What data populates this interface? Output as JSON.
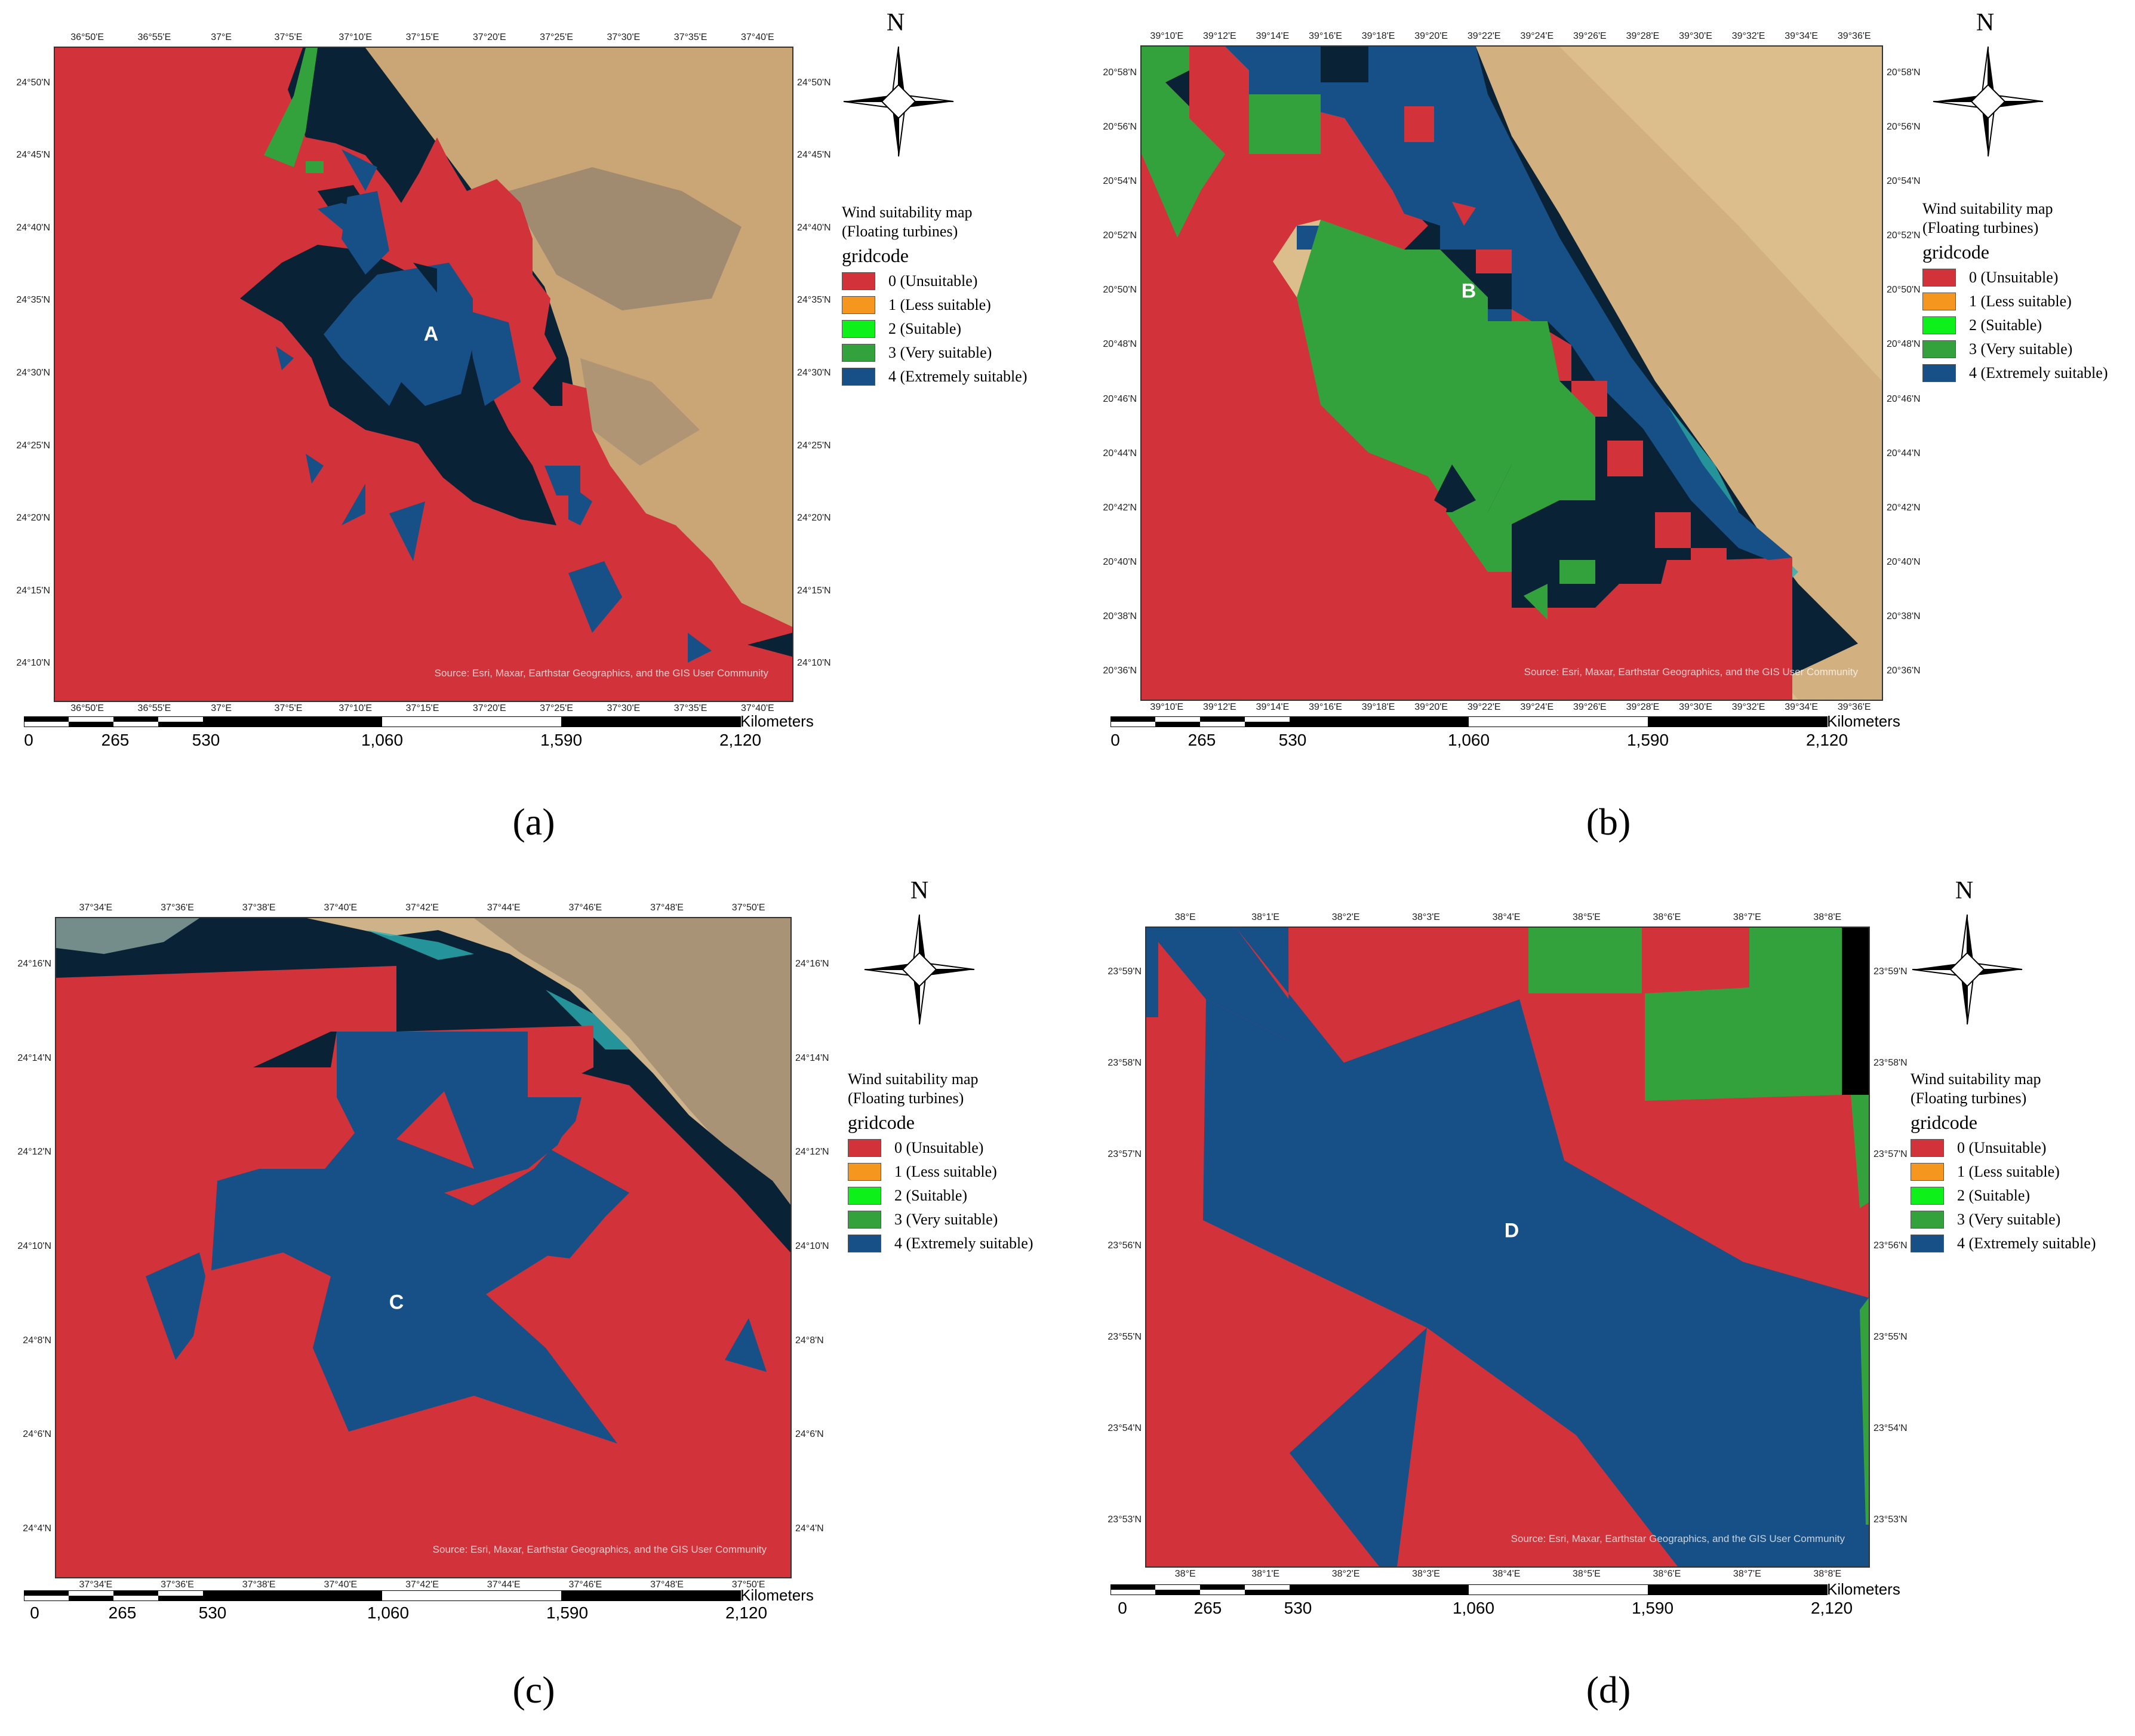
{
  "colors": {
    "unsuitable": "#d2323a",
    "less_suitable": "#f5961e",
    "suitable": "#0df019",
    "very_suitable": "#34a23c",
    "extremely_suitable": "#174f87",
    "sea": "#0a2235",
    "land": "#d9b98a",
    "land_dark": "#9c8a73"
  },
  "shared": {
    "north_label": "N",
    "legend_title_1": "Wind suitability map",
    "legend_title_2": "(Floating turbines)",
    "legend_field": "gridcode",
    "legend_items": [
      "0 (Unsuitable)",
      "1 (Less suitable)",
      "2 (Suitable)",
      "3 (Very suitable)",
      "4 (Extremely suitable)"
    ],
    "legend_icons": [
      "unsuitable",
      "less_suitable",
      "suitable",
      "very_suitable",
      "extremely_suitable"
    ],
    "scale_labels": [
      "0",
      "265",
      "530",
      "1,060",
      "1,590",
      "2,120"
    ],
    "scale_unit": "Kilometers",
    "credit": "Source: Esri, Maxar, Earthstar Geographics, and the GIS User Community"
  },
  "panels": [
    {
      "caption": "(a)",
      "region_label": "A",
      "lon_labels": [
        "36°50'E",
        "36°55'E",
        "37°E",
        "37°5'E",
        "37°10'E",
        "37°15'E",
        "37°20'E",
        "37°25'E",
        "37°30'E",
        "37°35'E",
        "37°40'E"
      ],
      "lat_labels": [
        "24°50'N",
        "24°45'N",
        "24°40'N",
        "24°35'N",
        "24°30'N",
        "24°25'N",
        "24°20'N",
        "24°15'N",
        "24°10'N"
      ]
    },
    {
      "caption": "(b)",
      "region_label": "B",
      "lon_labels": [
        "39°10'E",
        "39°12'E",
        "39°14'E",
        "39°16'E",
        "39°18'E",
        "39°20'E",
        "39°22'E",
        "39°24'E",
        "39°26'E",
        "39°28'E",
        "39°30'E",
        "39°32'E",
        "39°34'E",
        "39°36'E"
      ],
      "lat_labels": [
        "20°58'N",
        "20°56'N",
        "20°54'N",
        "20°52'N",
        "20°50'N",
        "20°48'N",
        "20°46'N",
        "20°44'N",
        "20°42'N",
        "20°40'N",
        "20°38'N",
        "20°36'N"
      ]
    },
    {
      "caption": "(c)",
      "region_label": "C",
      "lon_labels": [
        "37°34'E",
        "37°36'E",
        "37°38'E",
        "37°40'E",
        "37°42'E",
        "37°44'E",
        "37°46'E",
        "37°48'E",
        "37°50'E"
      ],
      "lat_labels": [
        "24°16'N",
        "24°14'N",
        "24°12'N",
        "24°10'N",
        "24°8'N",
        "24°6'N",
        "24°4'N"
      ]
    },
    {
      "caption": "(d)",
      "region_label": "D",
      "lon_labels": [
        "38°E",
        "38°1'E",
        "38°2'E",
        "38°3'E",
        "38°4'E",
        "38°5'E",
        "38°6'E",
        "38°7'E",
        "38°8'E"
      ],
      "lat_labels": [
        "23°59'N",
        "23°58'N",
        "23°57'N",
        "23°56'N",
        "23°55'N",
        "23°54'N",
        "23°53'N"
      ]
    }
  ]
}
